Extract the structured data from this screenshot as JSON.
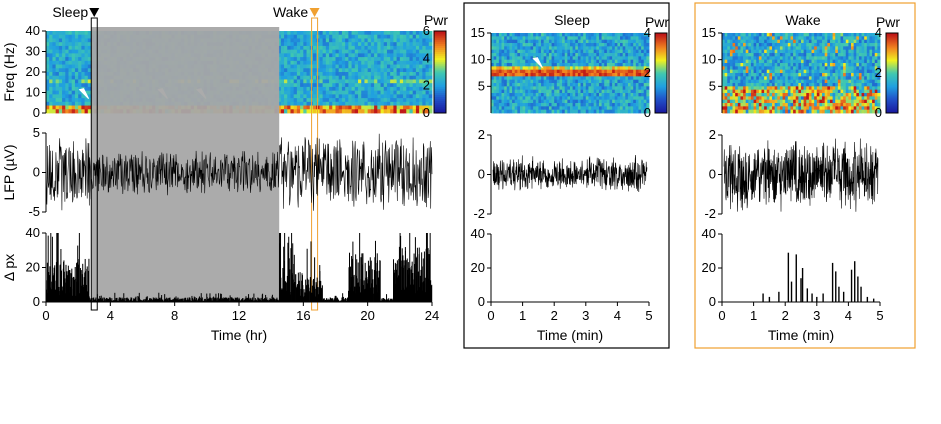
{
  "colors": {
    "sleep_marker": "#000000",
    "wake_marker": "#f0a030",
    "shade": "#a6a6a6",
    "signal": "#000000",
    "colormap": [
      "#1a1aa0",
      "#2050c8",
      "#20a0e0",
      "#40c8b0",
      "#f0f020",
      "#f08020",
      "#c01818"
    ]
  },
  "chart_data": [
    {
      "id": "spectrogram_24h",
      "type": "heatmap",
      "xlabel": "",
      "ylabel": "Freq (Hz)",
      "ylim": [
        0,
        40
      ],
      "yticks": [
        "0",
        "10",
        "20",
        "30",
        "40"
      ],
      "colorbar": {
        "label": "Pwr",
        "range": [
          0,
          6
        ],
        "ticks": [
          "0",
          "2",
          "4",
          "6"
        ]
      },
      "markers": [
        {
          "label": "Sleep",
          "x_hr": 3,
          "color": "#000000"
        },
        {
          "label": "Wake",
          "x_hr": 16.7,
          "color": "#f0a030"
        }
      ],
      "shaded_region_hr": [
        2.8,
        14.5
      ],
      "annotations": [
        {
          "type": "arrowhead",
          "x_hr": 2.4,
          "freq": 7
        },
        {
          "type": "arrowhead",
          "x_hr": 7.3,
          "freq": 7
        },
        {
          "type": "arrowhead",
          "x_hr": 9.7,
          "freq": 7
        }
      ]
    },
    {
      "id": "lfp_24h",
      "type": "line",
      "ylabel": "LFP (µV)",
      "ylim": [
        -5,
        5
      ],
      "yticks": [
        "-5",
        "0",
        "5"
      ]
    },
    {
      "id": "motion_24h",
      "type": "bar",
      "ylabel": "Δ px",
      "xlabel": "Time (hr)",
      "xlim": [
        0,
        24
      ],
      "ylim": [
        0,
        40
      ],
      "xticks": [
        "0",
        "4",
        "8",
        "12",
        "16",
        "20",
        "24"
      ],
      "yticks": [
        "0",
        "20",
        "40"
      ],
      "series": [
        {
          "segments_hr": [
            {
              "x": [
                0,
                2.7
              ],
              "level": 14
            },
            {
              "x": [
                2.7,
                14.5
              ],
              "level": 1.5
            },
            {
              "x": [
                14.5,
                15.5
              ],
              "level": 20
            },
            {
              "x": [
                15.5,
                17.2
              ],
              "level": 10
            },
            {
              "x": [
                17.2,
                18.8
              ],
              "level": 1.5
            },
            {
              "x": [
                18.8,
                20.8
              ],
              "level": 16
            },
            {
              "x": [
                20.8,
                21.6
              ],
              "level": 1.5
            },
            {
              "x": [
                21.6,
                24
              ],
              "level": 18
            }
          ]
        }
      ]
    },
    {
      "id": "sleep_zoom",
      "title": "Sleep",
      "type": "heatmap",
      "ylim": [
        0,
        15
      ],
      "yticks": [
        "5",
        "10",
        "15"
      ],
      "colorbar": {
        "label": "Pwr",
        "range": [
          0,
          4
        ],
        "ticks": [
          "0",
          "2",
          "4"
        ]
      },
      "band_freq": 8,
      "annotations": [
        {
          "type": "arrowhead",
          "x_min": 1.5,
          "freq": 10
        }
      ]
    },
    {
      "id": "sleep_lfp",
      "type": "line",
      "ylim": [
        -2,
        2
      ],
      "yticks": [
        "-2",
        "0",
        "2"
      ],
      "amplitude": 1.0
    },
    {
      "id": "sleep_motion",
      "type": "bar",
      "xlabel": "Time (min)",
      "xlim": [
        0,
        5
      ],
      "ylim": [
        0,
        40
      ],
      "xticks": [
        "0",
        "1",
        "2",
        "3",
        "4",
        "5"
      ],
      "yticks": [
        "0",
        "20",
        "40"
      ],
      "values": []
    },
    {
      "id": "wake_zoom",
      "title": "Wake",
      "type": "heatmap",
      "ylim": [
        0,
        15
      ],
      "yticks": [
        "5",
        "10",
        "15"
      ],
      "colorbar": {
        "label": "Pwr",
        "range": [
          0,
          4
        ],
        "ticks": [
          "0",
          "2",
          "4"
        ]
      }
    },
    {
      "id": "wake_lfp",
      "type": "line",
      "ylim": [
        -2,
        2
      ],
      "yticks": [
        "-2",
        "0",
        "2"
      ],
      "amplitude": 2.0
    },
    {
      "id": "wake_motion",
      "type": "bar",
      "xlabel": "Time (min)",
      "xlim": [
        0,
        5
      ],
      "ylim": [
        0,
        40
      ],
      "xticks": [
        "0",
        "1",
        "2",
        "3",
        "4",
        "5"
      ],
      "yticks": [
        "0",
        "20",
        "40"
      ],
      "points": [
        {
          "x": 1.3,
          "y": 5
        },
        {
          "x": 1.5,
          "y": 3
        },
        {
          "x": 1.8,
          "y": 6
        },
        {
          "x": 2.1,
          "y": 29
        },
        {
          "x": 2.2,
          "y": 12
        },
        {
          "x": 2.35,
          "y": 28
        },
        {
          "x": 2.5,
          "y": 14
        },
        {
          "x": 2.55,
          "y": 20
        },
        {
          "x": 2.7,
          "y": 8
        },
        {
          "x": 2.85,
          "y": 5
        },
        {
          "x": 3.0,
          "y": 3
        },
        {
          "x": 3.2,
          "y": 5
        },
        {
          "x": 3.5,
          "y": 23
        },
        {
          "x": 3.6,
          "y": 18
        },
        {
          "x": 3.7,
          "y": 9
        },
        {
          "x": 3.85,
          "y": 6
        },
        {
          "x": 4.1,
          "y": 19
        },
        {
          "x": 4.2,
          "y": 24
        },
        {
          "x": 4.3,
          "y": 15
        },
        {
          "x": 4.4,
          "y": 9
        },
        {
          "x": 4.6,
          "y": 3
        },
        {
          "x": 4.8,
          "y": 2
        }
      ]
    }
  ]
}
